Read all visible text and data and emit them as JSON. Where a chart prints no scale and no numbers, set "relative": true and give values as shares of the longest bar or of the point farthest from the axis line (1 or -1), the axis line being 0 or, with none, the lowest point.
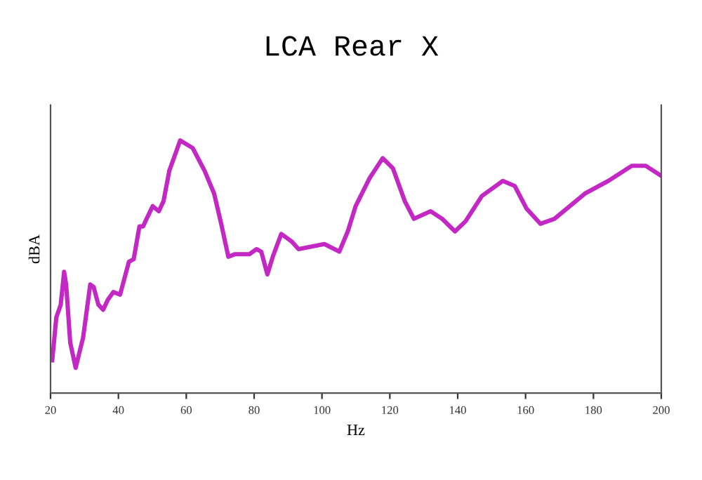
{
  "chart_data": {
    "type": "line",
    "title": "LCA Rear X",
    "xlabel": "Hz",
    "ylabel": "dBA",
    "relative": true,
    "xlim": [
      20,
      200
    ],
    "xticks": [
      20,
      40,
      60,
      80,
      100,
      120,
      140,
      160,
      180,
      200
    ],
    "grid": false,
    "legend": false,
    "marker": "none",
    "line_style": "solid",
    "series": [
      {
        "color": "#c428c4",
        "x": [
          20.5,
          21.7,
          23.0,
          24.0,
          24.6,
          25.8,
          27.4,
          29.6,
          31.7,
          32.7,
          34.1,
          35.5,
          36.9,
          38.5,
          40.5,
          43.1,
          44.5,
          46.2,
          47.3,
          48.3,
          50.1,
          51.9,
          53.3,
          55.0,
          58.2,
          61.9,
          65.4,
          68.2,
          70.3,
          72.4,
          74.4,
          78.6,
          80.7,
          82.1,
          83.9,
          85.5,
          88.0,
          91.1,
          93.1,
          100.7,
          105.1,
          107.6,
          109.9,
          114.0,
          117.9,
          120.9,
          124.4,
          127.1,
          132.0,
          135.4,
          139.2,
          142.3,
          147.1,
          153.3,
          156.8,
          160.3,
          164.4,
          168.5,
          177.5,
          184.4,
          191.3,
          195.4,
          200
        ],
        "values": [
          0.13,
          0.3,
          0.35,
          0.48,
          0.43,
          0.2,
          0.1,
          0.22,
          0.43,
          0.42,
          0.35,
          0.33,
          0.37,
          0.4,
          0.39,
          0.52,
          0.53,
          0.66,
          0.66,
          0.69,
          0.74,
          0.72,
          0.76,
          0.88,
          1.0,
          0.97,
          0.88,
          0.79,
          0.67,
          0.54,
          0.55,
          0.55,
          0.57,
          0.56,
          0.47,
          0.54,
          0.63,
          0.6,
          0.57,
          0.59,
          0.56,
          0.64,
          0.74,
          0.85,
          0.93,
          0.89,
          0.76,
          0.69,
          0.72,
          0.69,
          0.64,
          0.68,
          0.78,
          0.84,
          0.82,
          0.73,
          0.67,
          0.69,
          0.79,
          0.84,
          0.9,
          0.9,
          0.86
        ]
      }
    ]
  }
}
